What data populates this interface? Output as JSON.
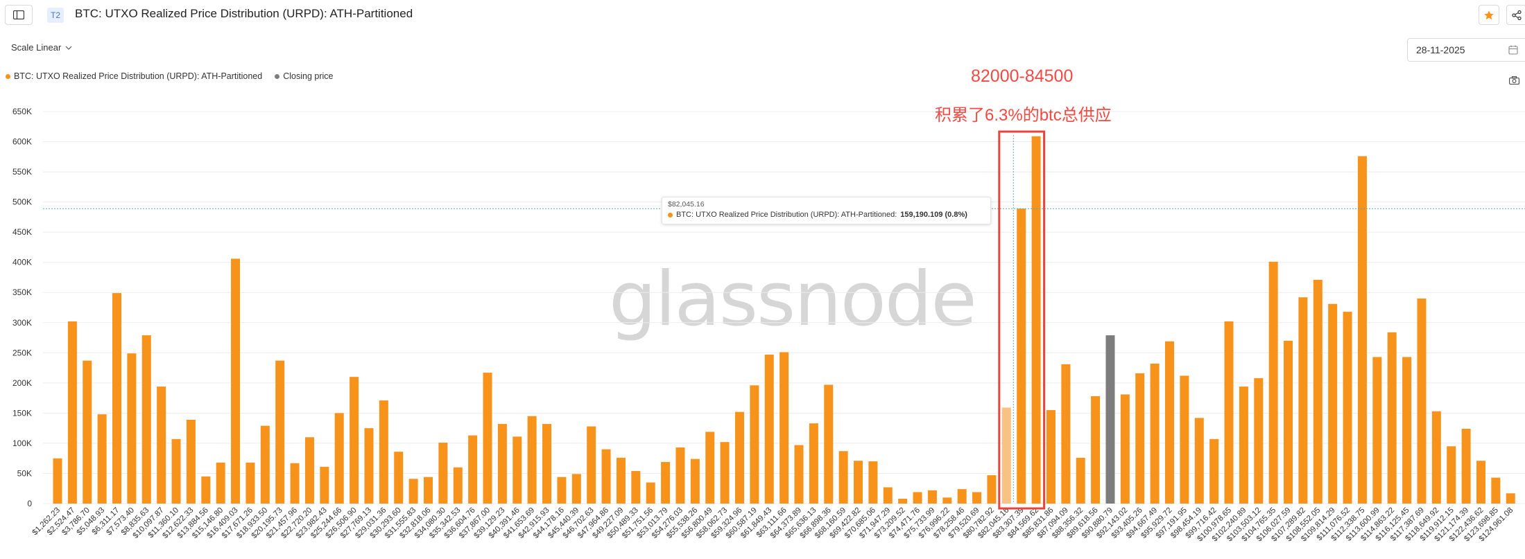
{
  "header": {
    "tier": "T2",
    "title": "BTC: UTXO Realized Price Distribution (URPD): ATH-Partitioned"
  },
  "controls": {
    "scale_label": "Scale Linear",
    "date_value": "28-11-2025"
  },
  "legend": [
    {
      "label": "BTC: UTXO Realized Price Distribution (URPD): ATH-Partitioned",
      "color": "#f7931a"
    },
    {
      "label": "Closing price",
      "color": "#7d7d7d"
    }
  ],
  "tooltip": {
    "price": "$82,045.16",
    "series": "BTC: UTXO Realized Price Distribution (URPD): ATH-Partitioned:",
    "value": "159,190.109 (0.8%)"
  },
  "watermark": "glassnode",
  "annotation": {
    "range": "82000-84500",
    "note": "积累了6.3%的btc总供应"
  },
  "chart_data": {
    "type": "bar",
    "ylim": [
      0,
      650000
    ],
    "y_ticks": [
      "0",
      "50K",
      "100K",
      "150K",
      "200K",
      "250K",
      "300K",
      "350K",
      "400K",
      "450K",
      "500K",
      "550K",
      "600K",
      "650K"
    ],
    "closing_price_line": 489000,
    "highlighted_bin": "$82,045.16",
    "closing_price_bin": "$90,880.79",
    "categories": [
      "$1,262.23",
      "$2,524.47",
      "$3,786.70",
      "$5,048.93",
      "$6,311.17",
      "$7,573.40",
      "$8,835.63",
      "$10,097.87",
      "$11,360.10",
      "$12,622.33",
      "$13,884.56",
      "$15,146.80",
      "$16,409.03",
      "$17,671.26",
      "$18,933.50",
      "$20,195.73",
      "$21,457.96",
      "$22,720.20",
      "$23,982.43",
      "$25,244.66",
      "$26,506.90",
      "$27,769.13",
      "$29,031.36",
      "$30,293.60",
      "$31,555.83",
      "$32,818.06",
      "$34,080.30",
      "$35,342.53",
      "$36,604.76",
      "$37,867.00",
      "$39,129.23",
      "$40,391.46",
      "$41,653.69",
      "$42,915.93",
      "$44,178.16",
      "$45,440.39",
      "$46,702.63",
      "$47,964.86",
      "$49,227.09",
      "$50,489.33",
      "$51,751.56",
      "$53,013.79",
      "$54,276.03",
      "$55,538.26",
      "$56,800.49",
      "$58,062.73",
      "$59,324.96",
      "$60,587.19",
      "$61,849.43",
      "$63,111.66",
      "$64,373.89",
      "$65,636.13",
      "$66,898.36",
      "$68,160.59",
      "$69,422.82",
      "$70,685.06",
      "$71,947.29",
      "$73,209.52",
      "$74,471.76",
      "$75,733.99",
      "$76,996.22",
      "$78,258.46",
      "$79,520.69",
      "$80,782.92",
      "$82,045.16",
      "$83,307.39",
      "$84,569.62",
      "$85,831.86",
      "$87,094.09",
      "$88,356.32",
      "$89,618.56",
      "$90,880.79",
      "$92,143.02",
      "$93,405.26",
      "$94,667.49",
      "$95,929.72",
      "$97,191.95",
      "$98,454.19",
      "$99,716.42",
      "$100,978.65",
      "$102,240.89",
      "$103,503.12",
      "$104,765.35",
      "$106,027.59",
      "$107,289.82",
      "$108,552.05",
      "$109,814.29",
      "$111,076.52",
      "$112,338.75",
      "$113,600.99",
      "$114,863.22",
      "$116,125.45",
      "$117,387.69",
      "$118,649.92",
      "$119,912.15",
      "$121,174.39",
      "$122,436.62",
      "$123,698.85",
      "$124,961.08"
    ],
    "values": [
      75000,
      302000,
      237000,
      148000,
      349000,
      249000,
      279000,
      194000,
      107000,
      139000,
      45000,
      68000,
      406000,
      68000,
      129000,
      237000,
      67000,
      110000,
      61000,
      150000,
      210000,
      125000,
      171000,
      86000,
      41000,
      44000,
      101000,
      60000,
      113000,
      217000,
      132000,
      111000,
      145000,
      132000,
      44000,
      49000,
      128000,
      90000,
      76000,
      54000,
      35000,
      69000,
      93000,
      74000,
      119000,
      102000,
      152000,
      196000,
      247000,
      251000,
      97000,
      133000,
      197000,
      87000,
      71000,
      70000,
      27000,
      8000,
      19000,
      22000,
      10000,
      24000,
      19000,
      47000,
      159190,
      489000,
      609000,
      155000,
      231000,
      76000,
      178000,
      279000,
      181000,
      216000,
      232000,
      269000,
      212000,
      142000,
      107000,
      302000,
      194000,
      208000,
      401000,
      270000,
      342000,
      371000,
      331000,
      318000,
      576000,
      243000,
      284000,
      243000,
      340000,
      153000,
      95000,
      124000,
      71000,
      43000,
      17000
    ]
  }
}
